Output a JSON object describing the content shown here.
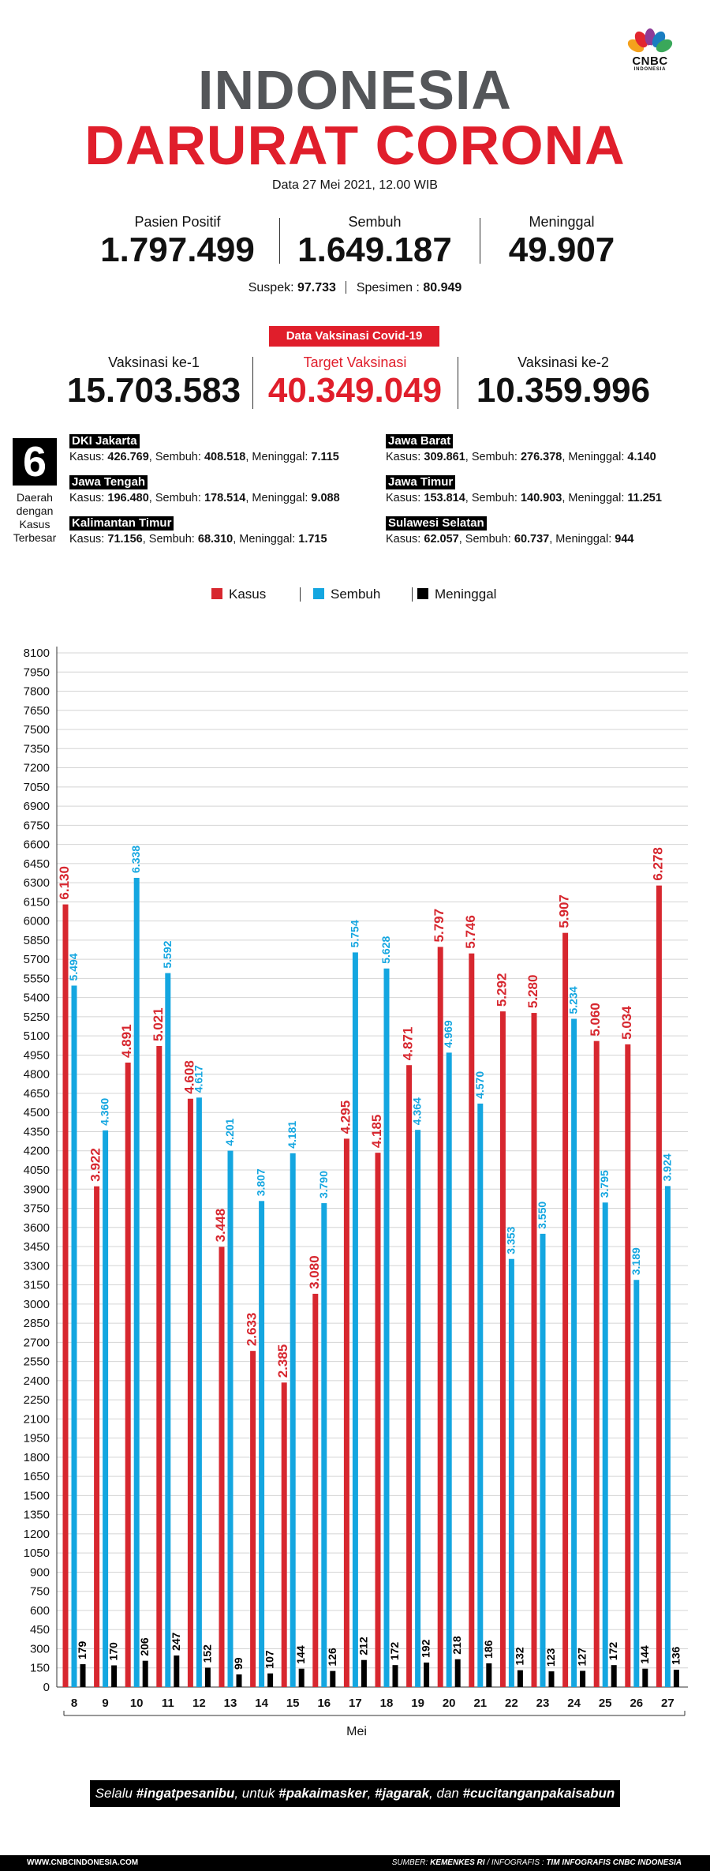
{
  "brand": {
    "name": "CNBC",
    "sub": "INDONESIA"
  },
  "header": {
    "title_line1": "INDONESIA",
    "title_line2": "DARURAT CORONA",
    "date": "Data 27 Mei 2021, 12.00 WIB"
  },
  "stats": [
    {
      "label": "Pasien Positif",
      "value": "1.797.499"
    },
    {
      "label": "Sembuh",
      "value": "1.649.187"
    },
    {
      "label": "Meninggal",
      "value": "49.907"
    }
  ],
  "sub_stats": {
    "suspek_label": "Suspek:",
    "suspek_value": "97.733",
    "spesimen_label": "Spesimen :",
    "spesimen_value": "80.949"
  },
  "vaccine": {
    "badge": "Data Vaksinasi Covid-19",
    "items": [
      {
        "label": "Vaksinasi ke-1",
        "value": "15.703.583"
      },
      {
        "label": "Target Vaksinasi",
        "value": "40.349.049"
      },
      {
        "label": "Vaksinasi ke-2",
        "value": "10.359.996"
      }
    ]
  },
  "regions": {
    "count": "6",
    "caption": [
      "Daerah",
      "dengan",
      "Kasus",
      "Terbesar"
    ],
    "kasus_label": "Kasus:",
    "sembuh_label": "Sembuh:",
    "meninggal_label": "Meninggal:",
    "items": [
      {
        "name": "DKI Jakarta",
        "kasus": "426.769",
        "sembuh": "408.518",
        "meninggal": "7.115"
      },
      {
        "name": "Jawa Barat",
        "kasus": "309.861",
        "sembuh": "276.378",
        "meninggal": "4.140"
      },
      {
        "name": "Jawa Tengah",
        "kasus": "196.480",
        "sembuh": "178.514",
        "meninggal": "9.088"
      },
      {
        "name": "Jawa Timur",
        "kasus": "153.814",
        "sembuh": "140.903",
        "meninggal": "11.251"
      },
      {
        "name": "Kalimantan Timur",
        "kasus": "71.156",
        "sembuh": "68.310",
        "meninggal": "1.715"
      },
      {
        "name": "Sulawesi Selatan",
        "kasus": "62.057",
        "sembuh": "60.737",
        "meninggal": "944"
      }
    ]
  },
  "colors": {
    "kasus": "#d7272f",
    "sembuh": "#14a6e0",
    "meninggal": "#000000",
    "title_grey": "#545659",
    "accent": "#e01e2b"
  },
  "chart_data": {
    "type": "bar",
    "xlabel": "Mei",
    "ylabel": "",
    "ylim": [
      0,
      8100
    ],
    "ytick_step": 150,
    "grid": true,
    "legend": "top-center",
    "categories": [
      "8",
      "9",
      "10",
      "11",
      "12",
      "13",
      "14",
      "15",
      "16",
      "17",
      "18",
      "19",
      "20",
      "21",
      "22",
      "23",
      "24",
      "25",
      "26",
      "27"
    ],
    "series": [
      {
        "name": "Kasus",
        "color": "#d7272f",
        "values": [
          6130,
          3922,
          4891,
          5021,
          4608,
          3448,
          2633,
          2385,
          3080,
          4295,
          4185,
          4871,
          5797,
          5746,
          5292,
          5280,
          5907,
          5060,
          5034,
          6278
        ],
        "labels": [
          "6.130",
          "3.922",
          "4.891",
          "5.021",
          "4.608",
          "3.448",
          "2.633",
          "2.385",
          "3.080",
          "4.295",
          "4.185",
          "4.871",
          "5.797",
          "5.746",
          "5.292",
          "5.280",
          "5.907",
          "5.060",
          "5.034",
          "6.278"
        ]
      },
      {
        "name": "Sembuh",
        "color": "#14a6e0",
        "values": [
          5494,
          4360,
          6338,
          5592,
          4617,
          4201,
          3807,
          4181,
          3790,
          5754,
          5628,
          4364,
          4969,
          4570,
          3353,
          3550,
          5234,
          3795,
          3189,
          3924
        ],
        "labels": [
          "5.494",
          "4.360",
          "6.338",
          "5.592",
          "4.617",
          "4.201",
          "3.807",
          "4.181",
          "3.790",
          "5.754",
          "5.628",
          "4.364",
          "4.969",
          "4.570",
          "3.353",
          "3.550",
          "5.234",
          "3.795",
          "3.189",
          "3.924"
        ]
      },
      {
        "name": "Meninggal",
        "color": "#000000",
        "values": [
          179,
          170,
          206,
          247,
          152,
          99,
          107,
          144,
          126,
          212,
          172,
          192,
          218,
          186,
          132,
          123,
          127,
          172,
          144,
          136
        ],
        "labels": [
          "179",
          "170",
          "206",
          "247",
          "152",
          "99",
          "107",
          "144",
          "126",
          "212",
          "172",
          "192",
          "218",
          "186",
          "132",
          "123",
          "127",
          "172",
          "144",
          "136"
        ]
      }
    ]
  },
  "slogan": {
    "p1": "Selalu ",
    "b1": "#ingatpesanibu",
    "p2": ", untuk ",
    "b2": "#pakaimasker",
    "p3": ", ",
    "b3": "#jagarak",
    "p4": ", dan ",
    "b4": "#cucitanganpakaisabun"
  },
  "footer": {
    "website": "WWW.CNBCINDONESIA.COM",
    "source_label": "SUMBER:",
    "source": "KEMENKES RI",
    "infografis_label": "/ INFOGRAFIS :",
    "infografis": "TIM INFOGRAFIS CNBC INDONESIA"
  }
}
